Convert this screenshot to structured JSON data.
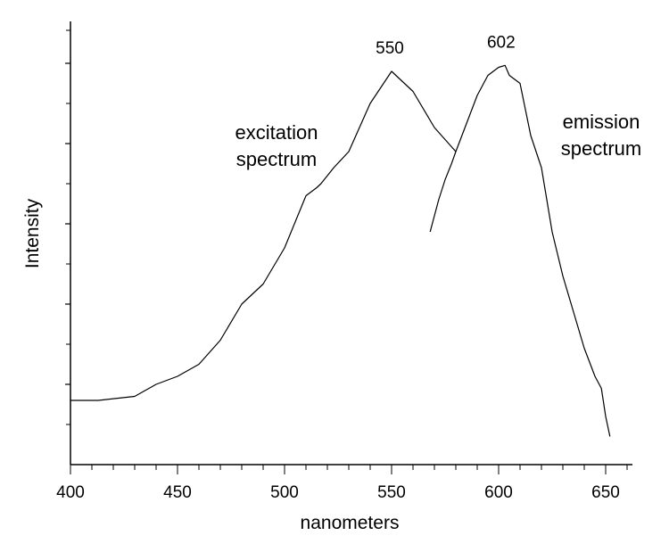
{
  "chart_data": {
    "type": "line",
    "title": "",
    "xlabel": "nanometers",
    "ylabel": "Intensity",
    "xlim": [
      400,
      660
    ],
    "ylim": [
      0,
      100
    ],
    "x_tick_labels": [
      400,
      450,
      500,
      550,
      600,
      650
    ],
    "grid": false,
    "legend": "none",
    "series": [
      {
        "name": "excitation spectrum",
        "color": "#000000",
        "points": [
          [
            400,
            16
          ],
          [
            413,
            16
          ],
          [
            430,
            17
          ],
          [
            440,
            20
          ],
          [
            450,
            22
          ],
          [
            460,
            25
          ],
          [
            470,
            31
          ],
          [
            480,
            40
          ],
          [
            490,
            45
          ],
          [
            500,
            54
          ],
          [
            510,
            67
          ],
          [
            515,
            69
          ],
          [
            517,
            70
          ],
          [
            523,
            74
          ],
          [
            530,
            78
          ],
          [
            540,
            90
          ],
          [
            550,
            98
          ],
          [
            560,
            93
          ],
          [
            570,
            84
          ],
          [
            580,
            78
          ]
        ]
      },
      {
        "name": "emission spectrum",
        "color": "#000000",
        "points": [
          [
            568,
            58
          ],
          [
            572,
            66
          ],
          [
            575,
            71
          ],
          [
            578,
            75
          ],
          [
            580,
            78
          ],
          [
            585,
            85
          ],
          [
            590,
            92
          ],
          [
            595,
            97
          ],
          [
            600,
            99
          ],
          [
            603,
            99.5
          ],
          [
            605,
            97
          ],
          [
            610,
            95
          ],
          [
            615,
            82
          ],
          [
            620,
            74
          ],
          [
            625,
            58
          ],
          [
            630,
            47
          ],
          [
            635,
            38
          ],
          [
            640,
            29
          ],
          [
            645,
            22
          ],
          [
            648,
            19
          ],
          [
            650,
            12
          ],
          [
            652,
            7
          ]
        ]
      }
    ],
    "annotations": [
      {
        "text": "550",
        "x": 550,
        "y": 98
      },
      {
        "text": "602",
        "x": 602,
        "y": 99.5
      }
    ],
    "series_labels": [
      {
        "lines": [
          "excitation",
          "spectrum"
        ]
      },
      {
        "lines": [
          "emission",
          "spectrum"
        ]
      }
    ]
  }
}
